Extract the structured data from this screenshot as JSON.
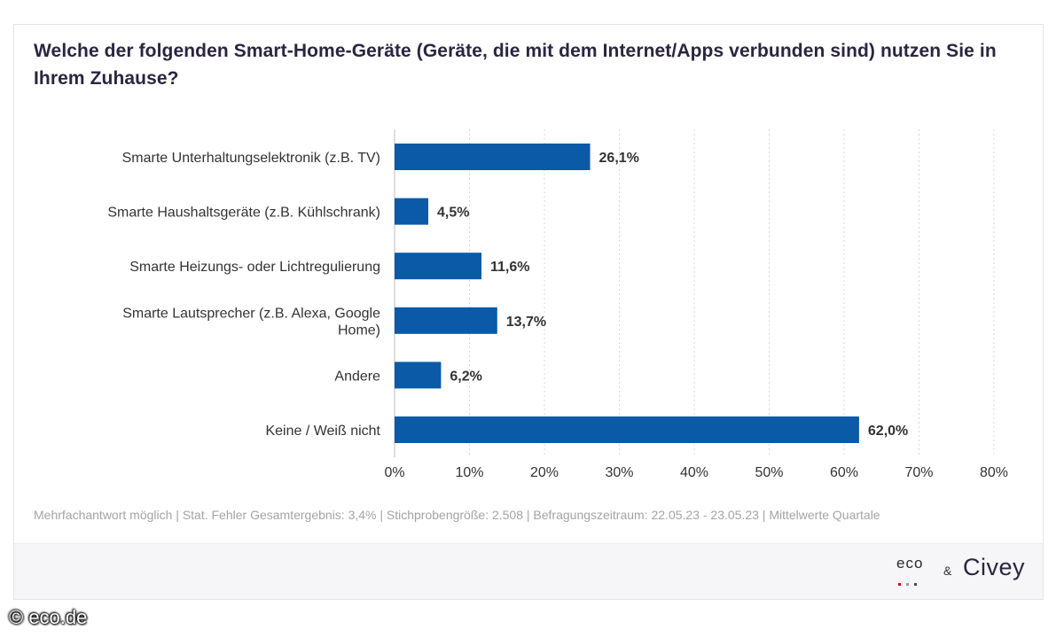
{
  "title": "Welche der folgenden Smart-Home-Geräte (Geräte, die mit dem Internet/Apps verbunden sind) nutzen Sie in Ihrem Zuhause?",
  "footnote": "Mehrfachantwort möglich | Stat. Fehler Gesamtergebnis: 3,4% | Stichprobengröße: 2.508 | Befragungszeitraum: 22.05.23 - 23.05.23 | Mittelwerte Quartale",
  "footer": {
    "eco_logo": "eco",
    "ampersand": "&",
    "civey_logo": "Civey",
    "eco_dot_colors": [
      "#d0021b",
      "#9b9b9b",
      "#4a4a4a"
    ]
  },
  "watermark": "© eco.de",
  "colors": {
    "bar": "#0a5aa8",
    "grid": "#d8d8de",
    "text": "#333333"
  },
  "chart_data": {
    "type": "bar",
    "orientation": "horizontal",
    "categories": [
      "Smarte Unterhaltungselektronik (z.B. TV)",
      "Smarte Haushaltsgeräte (z.B. Kühlschrank)",
      "Smarte Heizungs- oder Lichtregulierung",
      "Smarte Lautsprecher (z.B. Alexa, Google Home)",
      "Andere",
      "Keine / Weiß nicht"
    ],
    "category_lines": [
      [
        "Smarte Unterhaltungselektronik (z.B. TV)"
      ],
      [
        "Smarte Haushaltsgeräte (z.B. Kühlschrank)"
      ],
      [
        "Smarte Heizungs- oder Lichtregulierung"
      ],
      [
        "Smarte Lautsprecher (z.B. Alexa, Google",
        "Home)"
      ],
      [
        "Andere"
      ],
      [
        "Keine / Weiß nicht"
      ]
    ],
    "values": [
      26.1,
      4.5,
      11.6,
      13.7,
      6.2,
      62.0
    ],
    "value_labels": [
      "26,1%",
      "4,5%",
      "11,6%",
      "13,7%",
      "6,2%",
      "62,0%"
    ],
    "xticks": [
      0,
      10,
      20,
      30,
      40,
      50,
      60,
      70,
      80
    ],
    "xtick_labels": [
      "0%",
      "10%",
      "20%",
      "30%",
      "40%",
      "50%",
      "60%",
      "70%",
      "80%"
    ],
    "xlim": [
      0,
      80
    ],
    "grid": "vertical dashed",
    "xlabel": "",
    "ylabel": ""
  }
}
